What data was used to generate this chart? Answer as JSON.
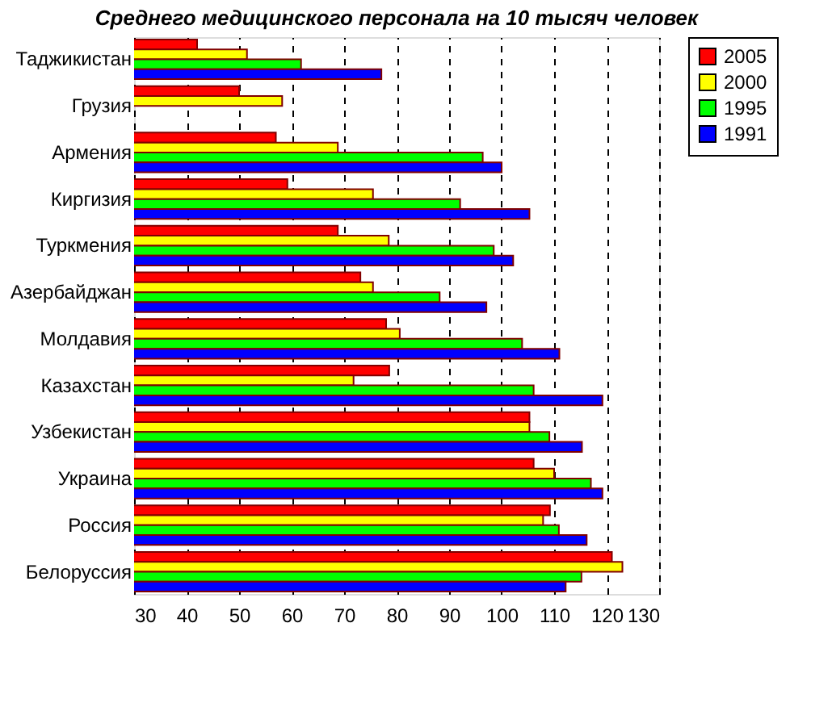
{
  "chart_data": {
    "type": "bar",
    "orientation": "horizontal",
    "title": "Среднего медицинского персонала на 10 тысяч человек",
    "categories": [
      "Таджикистан",
      "Грузия",
      "Армения",
      "Киргизия",
      "Туркмения",
      "Азербайджан",
      "Молдавия",
      "Казахстан",
      "Узбекистан",
      "Украина",
      "Россия",
      "Белоруссия"
    ],
    "series": [
      {
        "name": "2005",
        "color": "#ff0000",
        "values": [
          42,
          50,
          57,
          59.2,
          68.8,
          73.1,
          78,
          78.6,
          105.3,
          106.1,
          109.2,
          121
        ]
      },
      {
        "name": "2000",
        "color": "#ffff00",
        "values": [
          51.5,
          58.2,
          68.8,
          75.5,
          78.5,
          75.5,
          80.6,
          71.8,
          105.3,
          110,
          107.9,
          123
        ]
      },
      {
        "name": "1995",
        "color": "#00ff00",
        "values": [
          61.8,
          null,
          96.4,
          92.1,
          98.5,
          88.2,
          103.9,
          106.1,
          109.1,
          117,
          110.9,
          115.2
        ]
      },
      {
        "name": "1991",
        "color": "#0000ff",
        "values": [
          77.1,
          null,
          100,
          105.3,
          102.2,
          97.1,
          111,
          119.2,
          115.3,
          119.2,
          116.2,
          112.2
        ]
      }
    ],
    "xlim": [
      30,
      130
    ],
    "xticks": [
      30,
      40,
      50,
      60,
      70,
      80,
      90,
      100,
      110,
      120,
      130
    ],
    "grid": "x",
    "legend": "right"
  }
}
